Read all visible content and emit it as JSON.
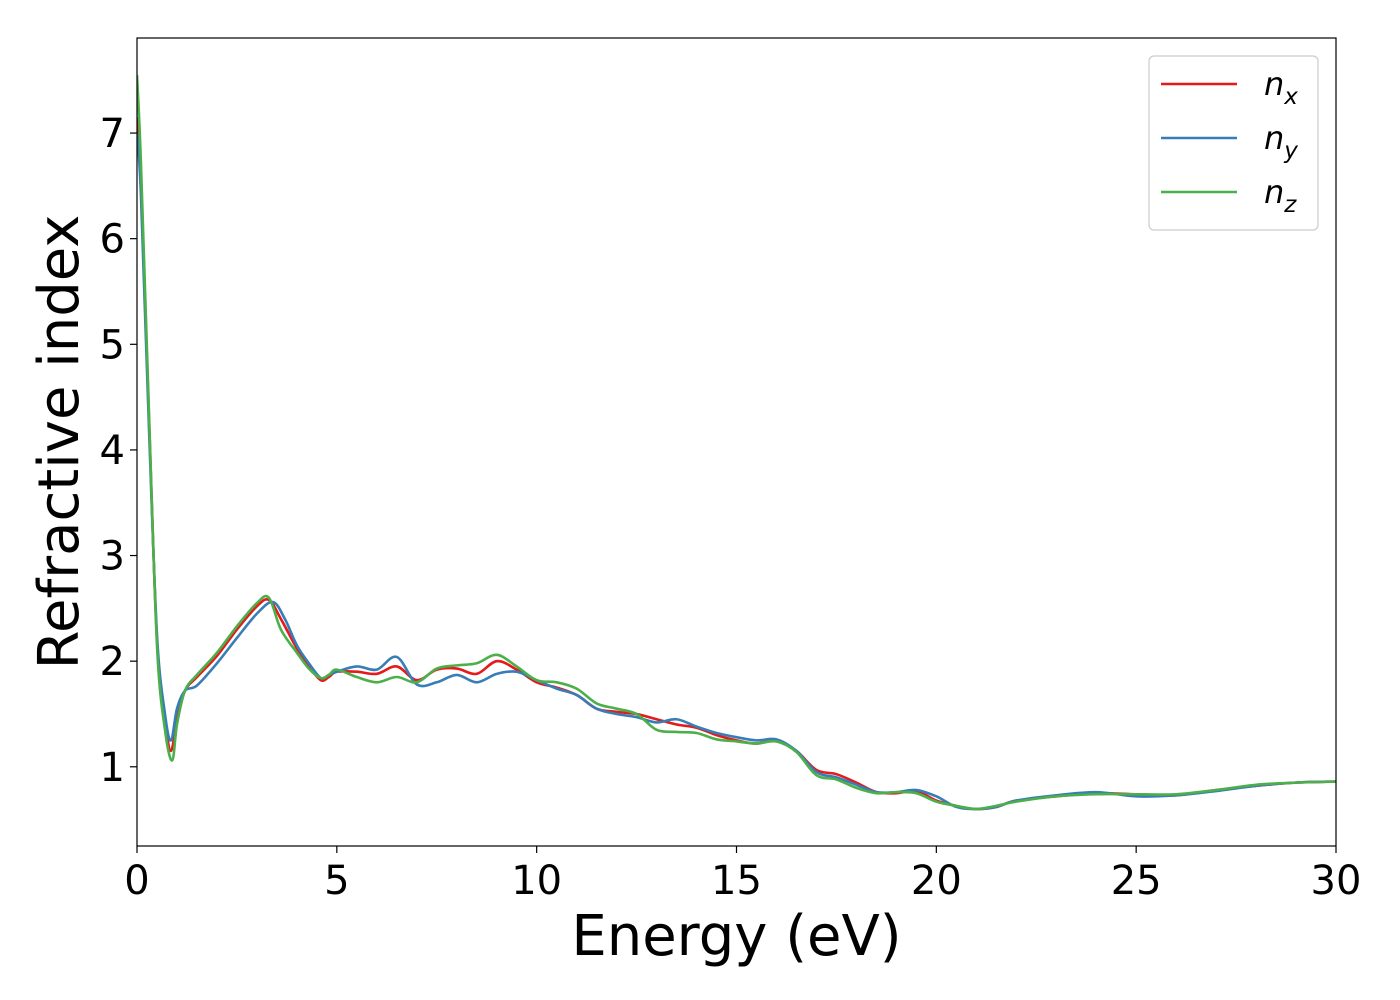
{
  "chart_data": {
    "type": "line",
    "title": "",
    "xlabel": "Energy (eV)",
    "ylabel": "Refractive index",
    "xlim": [
      0,
      30
    ],
    "ylim": [
      0.25,
      7.9
    ],
    "xticks": [
      0,
      5,
      10,
      15,
      20,
      25,
      30
    ],
    "yticks": [
      1,
      2,
      3,
      4,
      5,
      6,
      7
    ],
    "grid": false,
    "legend_position": "top-right",
    "series": [
      {
        "name": "n",
        "subscript": "x",
        "color": "#e41a1c",
        "x": [
          0,
          0.1,
          0.3,
          0.5,
          0.7,
          0.85,
          1.0,
          1.2,
          1.5,
          2.0,
          2.5,
          3.0,
          3.3,
          3.6,
          4.0,
          4.3,
          4.6,
          4.8,
          5.0,
          5.5,
          6.0,
          6.5,
          7.0,
          7.5,
          8.0,
          8.5,
          9.0,
          9.5,
          10.0,
          10.5,
          11.0,
          11.5,
          12.0,
          12.5,
          13.0,
          13.5,
          14.0,
          14.5,
          15.0,
          15.5,
          16.0,
          16.5,
          17.0,
          17.5,
          18.0,
          18.5,
          19.0,
          19.5,
          20.0,
          20.5,
          21.0,
          21.5,
          22.0,
          23.0,
          24.0,
          25.0,
          26.0,
          27.0,
          28.0,
          29.0,
          30.0
        ],
        "y": [
          7.15,
          6.5,
          4.3,
          2.2,
          1.45,
          1.15,
          1.45,
          1.72,
          1.85,
          2.05,
          2.3,
          2.52,
          2.58,
          2.4,
          2.12,
          1.95,
          1.82,
          1.85,
          1.9,
          1.9,
          1.88,
          1.95,
          1.82,
          1.92,
          1.93,
          1.88,
          2.0,
          1.92,
          1.8,
          1.75,
          1.68,
          1.55,
          1.52,
          1.5,
          1.45,
          1.4,
          1.37,
          1.3,
          1.25,
          1.22,
          1.25,
          1.15,
          0.97,
          0.93,
          0.85,
          0.76,
          0.75,
          0.77,
          0.68,
          0.63,
          0.6,
          0.62,
          0.68,
          0.72,
          0.75,
          0.74,
          0.73,
          0.78,
          0.82,
          0.85,
          0.86
        ]
      },
      {
        "name": "n",
        "subscript": "y",
        "color": "#377eb8",
        "x": [
          0,
          0.1,
          0.3,
          0.5,
          0.7,
          0.85,
          1.0,
          1.2,
          1.5,
          2.0,
          2.5,
          3.0,
          3.4,
          3.7,
          4.0,
          4.3,
          4.6,
          4.8,
          5.0,
          5.5,
          6.0,
          6.5,
          7.0,
          7.5,
          8.0,
          8.5,
          9.0,
          9.5,
          10.0,
          10.5,
          11.0,
          11.5,
          12.0,
          12.5,
          13.0,
          13.5,
          14.0,
          14.5,
          15.0,
          15.5,
          16.0,
          16.5,
          17.0,
          17.5,
          18.0,
          18.5,
          19.0,
          19.5,
          20.0,
          20.5,
          21.0,
          21.5,
          22.0,
          23.0,
          24.0,
          25.0,
          26.0,
          27.0,
          28.0,
          29.0,
          30.0
        ],
        "y": [
          7.0,
          6.4,
          4.2,
          2.25,
          1.5,
          1.25,
          1.55,
          1.72,
          1.77,
          1.98,
          2.22,
          2.45,
          2.56,
          2.4,
          2.15,
          1.98,
          1.84,
          1.87,
          1.9,
          1.95,
          1.92,
          2.04,
          1.78,
          1.8,
          1.87,
          1.8,
          1.88,
          1.9,
          1.82,
          1.74,
          1.68,
          1.55,
          1.5,
          1.47,
          1.42,
          1.45,
          1.38,
          1.32,
          1.28,
          1.25,
          1.26,
          1.15,
          0.95,
          0.9,
          0.83,
          0.76,
          0.76,
          0.78,
          0.72,
          0.62,
          0.6,
          0.62,
          0.68,
          0.73,
          0.76,
          0.72,
          0.73,
          0.77,
          0.82,
          0.85,
          0.86
        ]
      },
      {
        "name": "n",
        "subscript": "z",
        "color": "#4daf4a",
        "x": [
          0,
          0.1,
          0.3,
          0.5,
          0.7,
          0.88,
          1.0,
          1.2,
          1.5,
          2.0,
          2.5,
          3.0,
          3.3,
          3.6,
          4.0,
          4.3,
          4.6,
          4.8,
          5.0,
          5.5,
          6.0,
          6.5,
          7.0,
          7.5,
          8.0,
          8.5,
          9.0,
          9.5,
          10.0,
          10.5,
          11.0,
          11.5,
          12.0,
          12.5,
          13.0,
          13.5,
          14.0,
          14.5,
          15.0,
          15.5,
          16.0,
          16.5,
          17.0,
          17.5,
          18.0,
          18.5,
          19.0,
          19.5,
          20.0,
          20.5,
          21.0,
          21.5,
          22.0,
          23.0,
          24.0,
          25.0,
          26.0,
          27.0,
          28.0,
          29.0,
          30.0
        ],
        "y": [
          7.55,
          6.7,
          4.35,
          2.15,
          1.35,
          1.06,
          1.4,
          1.72,
          1.87,
          2.08,
          2.33,
          2.55,
          2.6,
          2.3,
          2.08,
          1.93,
          1.84,
          1.87,
          1.92,
          1.85,
          1.8,
          1.85,
          1.8,
          1.93,
          1.96,
          1.98,
          2.06,
          1.95,
          1.82,
          1.8,
          1.74,
          1.6,
          1.55,
          1.5,
          1.35,
          1.33,
          1.32,
          1.26,
          1.24,
          1.22,
          1.24,
          1.14,
          0.92,
          0.88,
          0.8,
          0.75,
          0.76,
          0.75,
          0.67,
          0.63,
          0.6,
          0.63,
          0.67,
          0.72,
          0.74,
          0.74,
          0.74,
          0.78,
          0.83,
          0.85,
          0.86
        ]
      }
    ]
  }
}
